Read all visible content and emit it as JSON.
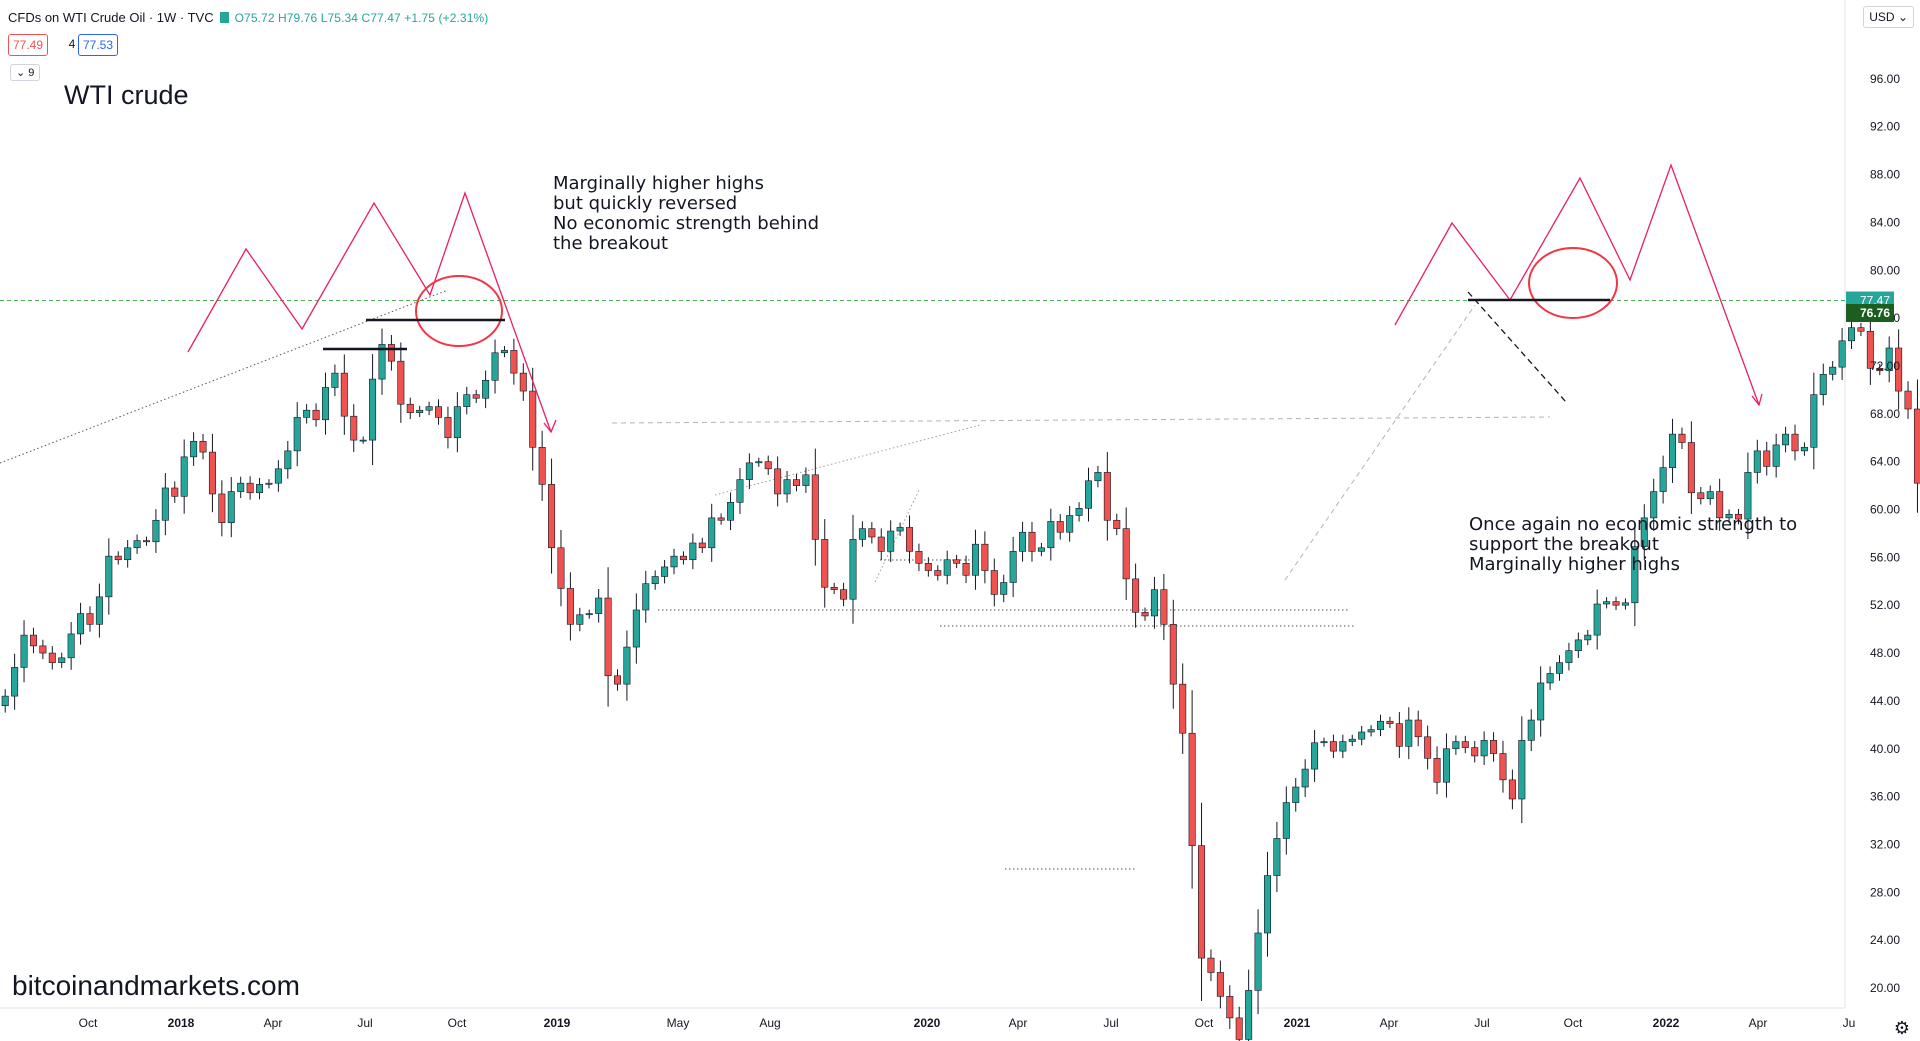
{
  "header": {
    "symbol": "CFDs on WTI Crude Oil · 1W · TVC",
    "ohlc": "O75.72  H79.76  L75.34  C77.47  +1.75 (+2.31%)",
    "bid": "77.49",
    "spread": "4",
    "ask": "77.53",
    "collapse_label": "⌄ 9"
  },
  "chart_title": "WTI crude",
  "watermark": "bitcoinandmarkets.com",
  "currency_button": "USD",
  "settings_icon": "gear-icon",
  "annotations": {
    "left": [
      "Marginally higher highs",
      "but quickly reversed",
      "No economic strength behind",
      "the breakout"
    ],
    "right": [
      "Once again no economic strength to",
      "support the breakout",
      "Marginally higher highs"
    ]
  },
  "colors": {
    "up": "#26a69a",
    "down": "#ef5350",
    "projection": "#e91e63",
    "circle": "#f23645",
    "price_line": "#4caf50"
  },
  "chart_data": {
    "type": "candlestick",
    "timeframe": "1W",
    "y_axis_ticks": [
      20,
      24,
      28,
      32,
      36,
      40,
      44,
      48,
      52,
      56,
      60,
      64,
      68,
      72,
      76,
      80,
      84,
      88,
      92,
      96
    ],
    "x_axis_labels": [
      "Oct",
      "2018",
      "Apr",
      "Jul",
      "Oct",
      "2019",
      "May",
      "Aug",
      "2020",
      "Apr",
      "Jul",
      "Oct",
      "2021",
      "Apr",
      "Jul",
      "Oct",
      "2022",
      "Apr",
      "Ju"
    ],
    "current_price": 77.47,
    "marked_price": 76.76,
    "closes": [
      44.4,
      46.8,
      49.5,
      48.6,
      48,
      47.2,
      47.6,
      49.6,
      51.3,
      50.4,
      52.7,
      56.1,
      55.8,
      56.8,
      57.4,
      57.3,
      59.1,
      61.8,
      61.1,
      64.4,
      65.7,
      64.8,
      61.3,
      58.9,
      61.5,
      62.2,
      61.4,
      62.1,
      62.2,
      63.4,
      64.9,
      67.7,
      68.3,
      67.5,
      70.2,
      71.4,
      67.8,
      65.8,
      65.8,
      70.9,
      73.8,
      72.4,
      68.8,
      68.1,
      68.3,
      68.6,
      67.7,
      66,
      68.6,
      69.6,
      69.3,
      70.8,
      73.1,
      73.3,
      71.4,
      69.9,
      65.2,
      62.1,
      56.8,
      53.4,
      50.4,
      51.2,
      51.3,
      52.6,
      46.1,
      45.4,
      48.5,
      51.6,
      53.8,
      54.4,
      55.2,
      56.1,
      55.8,
      57.2,
      56.8,
      59.3,
      59.1,
      60.6,
      62.5,
      63.9,
      64,
      63.4,
      61.3,
      62.5,
      62,
      62.9,
      57.5,
      53.5,
      53.3,
      52.5,
      57.5,
      58.4,
      57.7,
      56.5,
      58.2,
      58.5,
      56.5,
      55.5,
      54.9,
      54.5,
      55.8,
      55.5,
      54.5,
      57.1,
      54.9,
      52.9,
      53.9,
      56.5,
      58.1,
      56.5,
      56.8,
      59,
      58.1,
      59.5,
      60.1,
      62.4,
      63.1,
      59.1,
      58.4,
      54.2,
      51.4,
      51.1,
      53.3,
      50.4,
      45.4,
      41.3,
      31.9,
      22.5,
      21.3,
      19.3,
      17.5,
      15.7,
      19.8,
      24.6,
      29.4,
      32.5,
      35.5,
      36.8,
      38.3,
      40.5,
      40.6,
      39.8,
      40.6,
      40.8,
      41.4,
      41.6,
      42.3,
      42.1,
      40.2,
      42.4,
      41,
      39.2,
      37.2,
      40,
      40.6,
      40.1,
      39.4,
      40.7,
      39.6,
      37.4,
      35.8,
      40.7,
      42.4,
      45.5,
      46.3,
      47.2,
      48.2,
      49.1,
      49.5,
      52.1,
      52.3,
      52,
      52.2,
      56.9,
      59.3,
      61.5,
      63.5,
      66.3,
      65.6,
      61.4,
      60.9,
      61.5,
      59.3,
      59.6,
      59.2,
      63.1,
      64.9,
      63.6,
      65.4,
      66.3,
      64.9,
      65.2,
      69.6,
      71.3,
      71.9,
      74.1,
      75.2,
      74.9,
      71.8,
      71.6,
      73.5,
      69.9,
      68.4,
      62.2,
      68.7,
      68.9,
      69.8,
      71.6,
      74.1,
      75.7,
      77.5
    ]
  }
}
